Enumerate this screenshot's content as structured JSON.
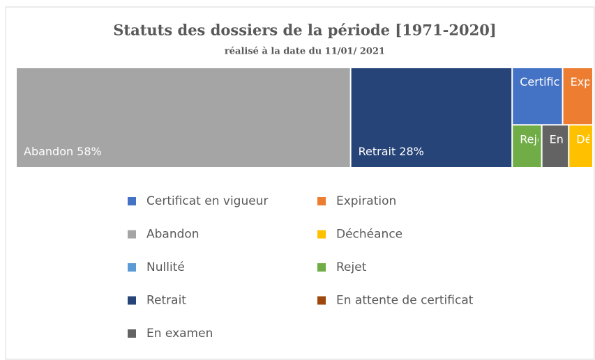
{
  "chart_data": {
    "type": "treemap",
    "title": "Statuts des dossiers de la période [1971-2020]",
    "subtitle": "réalisé à la date du 11/01/ 2021",
    "series": [
      {
        "name": "Certificat en vigueur",
        "color": "#4472c4",
        "value": 5
      },
      {
        "name": "Expiration",
        "color": "#ed7d31",
        "value": 3
      },
      {
        "name": "Abandon",
        "color": "#a5a5a5",
        "value": 58,
        "value_label": "58%"
      },
      {
        "name": "Déchéance",
        "color": "#ffc000",
        "value": 1.8
      },
      {
        "name": "Nullité",
        "color": "#5b9bd5",
        "value": 0
      },
      {
        "name": "Rejet",
        "color": "#70ad47",
        "value": 2.2
      },
      {
        "name": "Retrait",
        "color": "#264478",
        "value": 28,
        "value_label": "28%"
      },
      {
        "name": "En attente de certificat",
        "color": "#9e480e",
        "value": 0
      },
      {
        "name": "En examen",
        "color": "#636363",
        "value": 2
      }
    ]
  }
}
